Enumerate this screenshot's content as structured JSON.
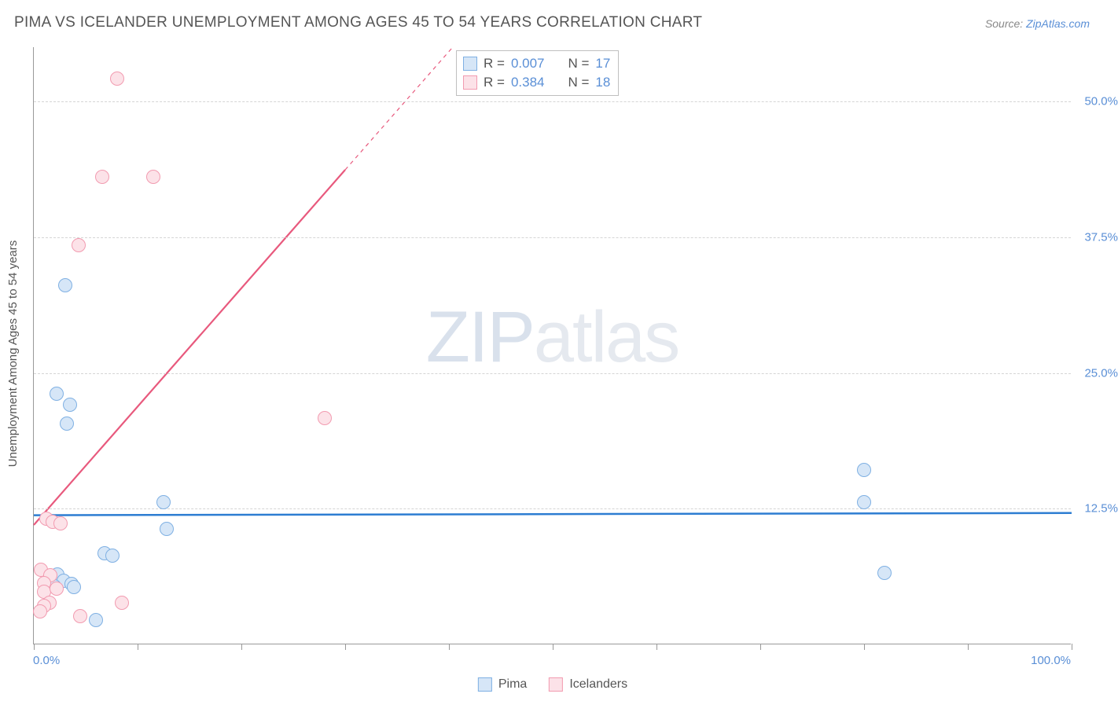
{
  "title": "PIMA VS ICELANDER UNEMPLOYMENT AMONG AGES 45 TO 54 YEARS CORRELATION CHART",
  "source_prefix": "Source: ",
  "source_link": "ZipAtlas.com",
  "y_axis_label": "Unemployment Among Ages 45 to 54 years",
  "watermark_a": "ZIP",
  "watermark_b": "atlas",
  "chart": {
    "background_color": "#ffffff",
    "grid_color": "#d5d5d5",
    "axis_color": "#999999",
    "xlim": [
      0,
      100
    ],
    "ylim": [
      0,
      55
    ],
    "x_ticks": [
      0,
      10,
      20,
      30,
      40,
      50,
      60,
      70,
      80,
      90,
      100
    ],
    "x_tick_labels": {
      "0": "0.0%",
      "100": "100.0%"
    },
    "y_gridlines": [
      12.5,
      25.0,
      37.5,
      50.0
    ],
    "y_tick_labels": [
      "12.5%",
      "25.0%",
      "37.5%",
      "50.0%"
    ],
    "marker_radius": 9,
    "marker_stroke_width": 1.2,
    "series": [
      {
        "name": "Pima",
        "fill": "#d6e6f7",
        "stroke": "#7fb0e3",
        "r_value": "0.007",
        "n_value": "17",
        "trend": {
          "y_at_x0": 11.9,
          "y_at_x100": 12.1,
          "color": "#2d7dd2",
          "width": 2.5
        },
        "points": [
          {
            "x": 3.0,
            "y": 33.0
          },
          {
            "x": 2.2,
            "y": 23.0
          },
          {
            "x": 3.5,
            "y": 22.0
          },
          {
            "x": 3.2,
            "y": 20.3
          },
          {
            "x": 12.5,
            "y": 13.0
          },
          {
            "x": 12.8,
            "y": 10.6
          },
          {
            "x": 6.8,
            "y": 8.3
          },
          {
            "x": 7.6,
            "y": 8.1
          },
          {
            "x": 2.3,
            "y": 6.4
          },
          {
            "x": 2.9,
            "y": 5.8
          },
          {
            "x": 2.0,
            "y": 5.3
          },
          {
            "x": 3.6,
            "y": 5.5
          },
          {
            "x": 3.9,
            "y": 5.2
          },
          {
            "x": 6.0,
            "y": 2.2
          },
          {
            "x": 80.0,
            "y": 16.0
          },
          {
            "x": 80.0,
            "y": 13.0
          },
          {
            "x": 82.0,
            "y": 6.5
          }
        ]
      },
      {
        "name": "Icelanders",
        "fill": "#fce2e8",
        "stroke": "#f29bb0",
        "r_value": "0.384",
        "n_value": "18",
        "trend": {
          "y_at_x0": 11.0,
          "y_at_x100": 120.0,
          "color": "#e8597d",
          "width": 2.2,
          "dashed_after_x": 30
        },
        "points": [
          {
            "x": 8.0,
            "y": 52.0
          },
          {
            "x": 6.6,
            "y": 43.0
          },
          {
            "x": 11.5,
            "y": 43.0
          },
          {
            "x": 4.3,
            "y": 36.7
          },
          {
            "x": 28.0,
            "y": 20.8
          },
          {
            "x": 1.2,
            "y": 11.5
          },
          {
            "x": 1.8,
            "y": 11.2
          },
          {
            "x": 2.6,
            "y": 11.1
          },
          {
            "x": 0.7,
            "y": 6.8
          },
          {
            "x": 1.6,
            "y": 6.3
          },
          {
            "x": 1.0,
            "y": 5.6
          },
          {
            "x": 1.0,
            "y": 4.8
          },
          {
            "x": 2.2,
            "y": 5.1
          },
          {
            "x": 1.5,
            "y": 3.8
          },
          {
            "x": 8.5,
            "y": 3.8
          },
          {
            "x": 1.0,
            "y": 3.5
          },
          {
            "x": 0.6,
            "y": 3.0
          },
          {
            "x": 4.5,
            "y": 2.5
          }
        ]
      }
    ]
  },
  "stats_box": {
    "r_label": "R =",
    "n_label": "N ="
  },
  "legend": {
    "series1": "Pima",
    "series2": "Icelanders"
  }
}
